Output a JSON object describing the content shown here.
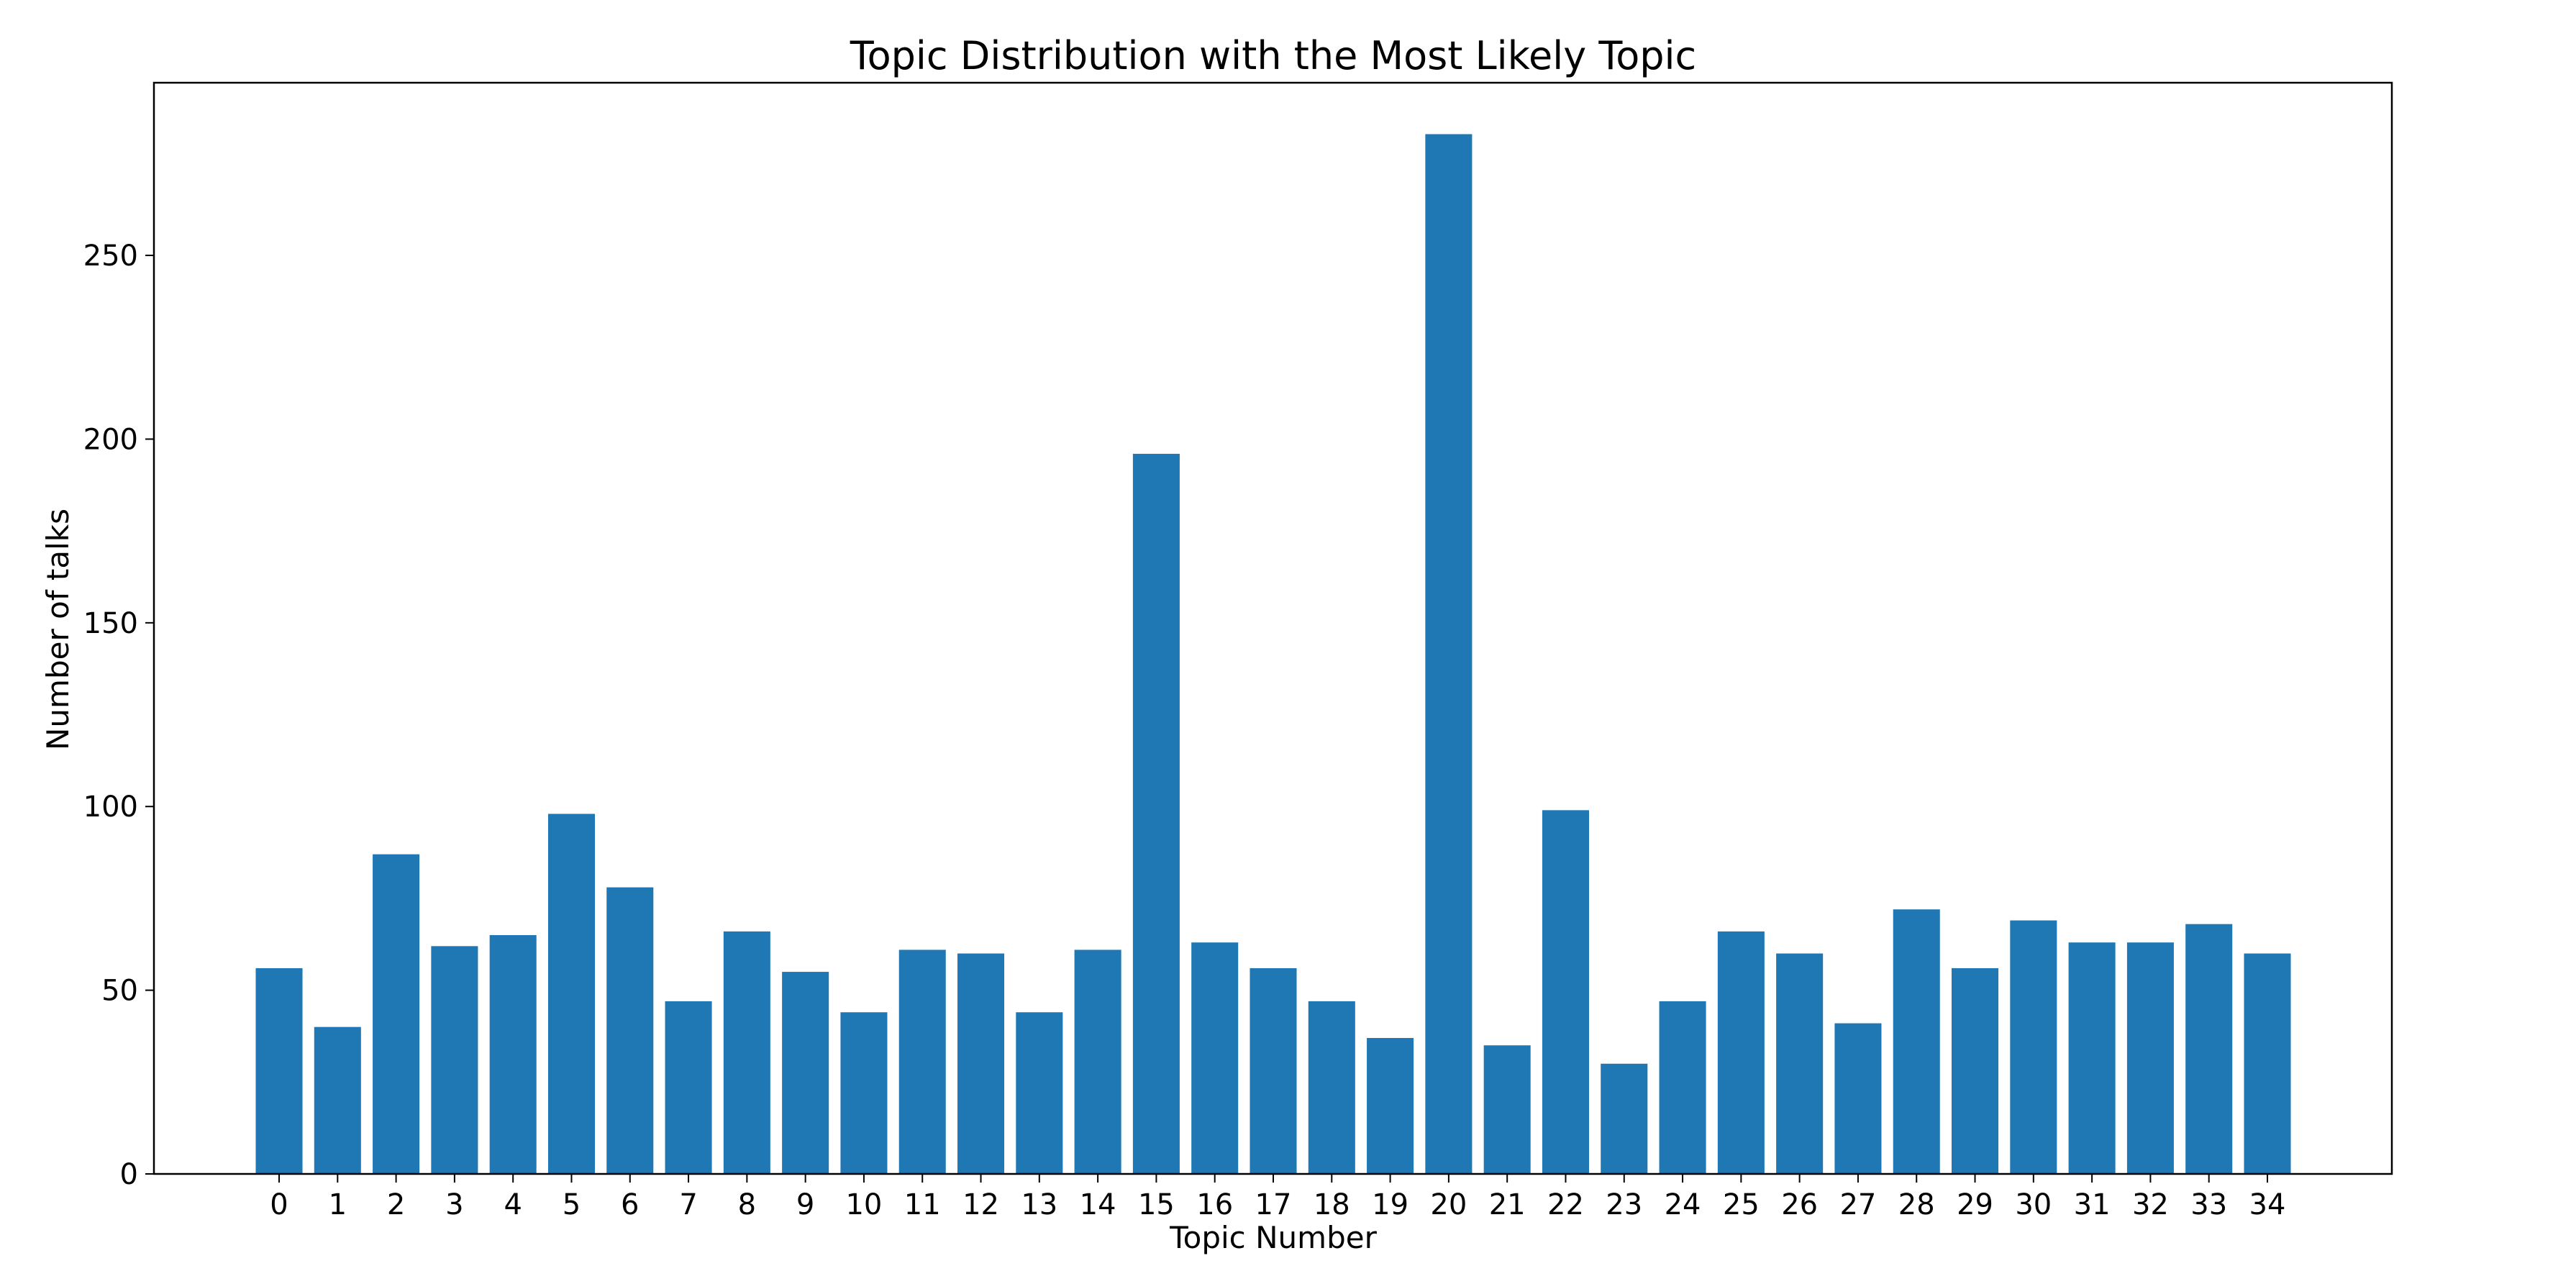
{
  "chart_data": {
    "type": "bar",
    "title": "Topic Distribution with the Most Likely Topic",
    "xlabel": "Topic Number",
    "ylabel": "Number of talks",
    "categories": [
      "0",
      "1",
      "2",
      "3",
      "4",
      "5",
      "6",
      "7",
      "8",
      "9",
      "10",
      "11",
      "12",
      "13",
      "14",
      "15",
      "16",
      "17",
      "18",
      "19",
      "20",
      "21",
      "22",
      "23",
      "24",
      "25",
      "26",
      "27",
      "28",
      "29",
      "30",
      "31",
      "32",
      "33",
      "34"
    ],
    "values": [
      56,
      40,
      87,
      62,
      65,
      98,
      78,
      47,
      66,
      55,
      44,
      61,
      60,
      44,
      61,
      196,
      63,
      56,
      47,
      37,
      283,
      35,
      99,
      30,
      47,
      66,
      60,
      41,
      72,
      56,
      69,
      63,
      63,
      68,
      60
    ],
    "ylim": [
      0,
      297
    ],
    "yticks": [
      0,
      50,
      100,
      150,
      200,
      250
    ],
    "grid": false,
    "bar_color": "#1f77b4"
  }
}
